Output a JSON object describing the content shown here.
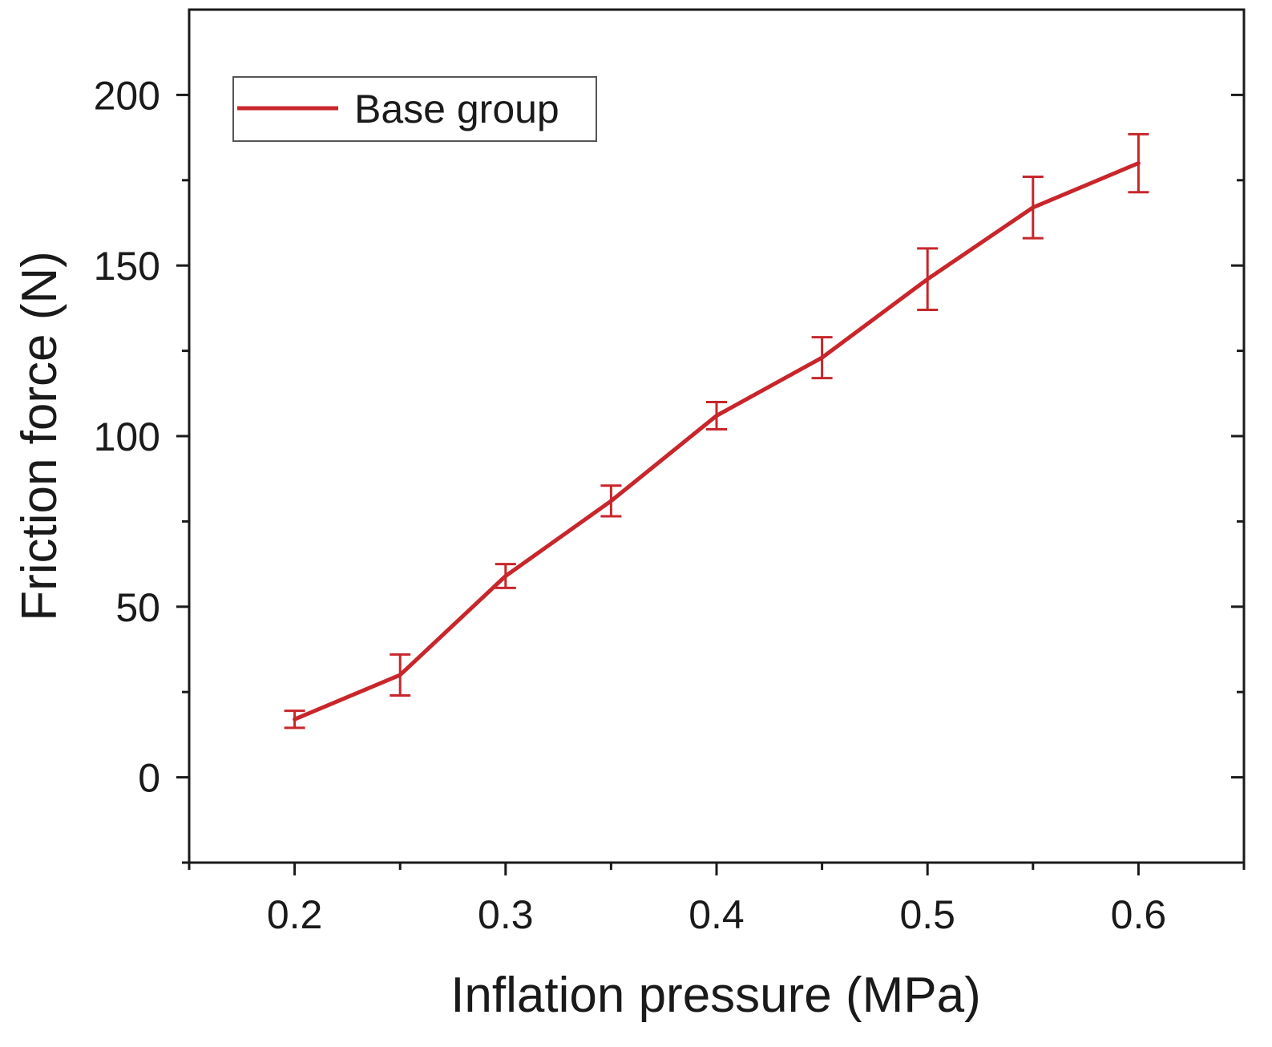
{
  "chart_data": {
    "type": "line",
    "title": "",
    "xlabel": "Inflation pressure (MPa)",
    "ylabel": "Friction force (N)",
    "xlim": [
      0.15,
      0.65
    ],
    "ylim": [
      -25,
      225
    ],
    "xticks": [
      0.2,
      0.3,
      0.4,
      0.5,
      0.6
    ],
    "xtick_labels": [
      "0.2",
      "0.3",
      "0.4",
      "0.5",
      "0.6"
    ],
    "xminor": [
      0.25,
      0.35,
      0.45,
      0.55
    ],
    "yticks": [
      0,
      50,
      100,
      150,
      200
    ],
    "ytick_labels": [
      "0",
      "50",
      "100",
      "150",
      "200"
    ],
    "yminor": [
      -25,
      25,
      75,
      125,
      175
    ],
    "grid": false,
    "legend_position": "top-left",
    "series": [
      {
        "name": "Base group",
        "color": "#c8262b",
        "x": [
          0.2,
          0.25,
          0.3,
          0.35,
          0.4,
          0.45,
          0.5,
          0.55,
          0.6
        ],
        "y": [
          17,
          30,
          59,
          81,
          106,
          123,
          146,
          167,
          180
        ],
        "yerr": [
          2.5,
          6,
          3.5,
          4.5,
          4,
          6,
          9,
          9,
          8.5
        ]
      }
    ]
  }
}
